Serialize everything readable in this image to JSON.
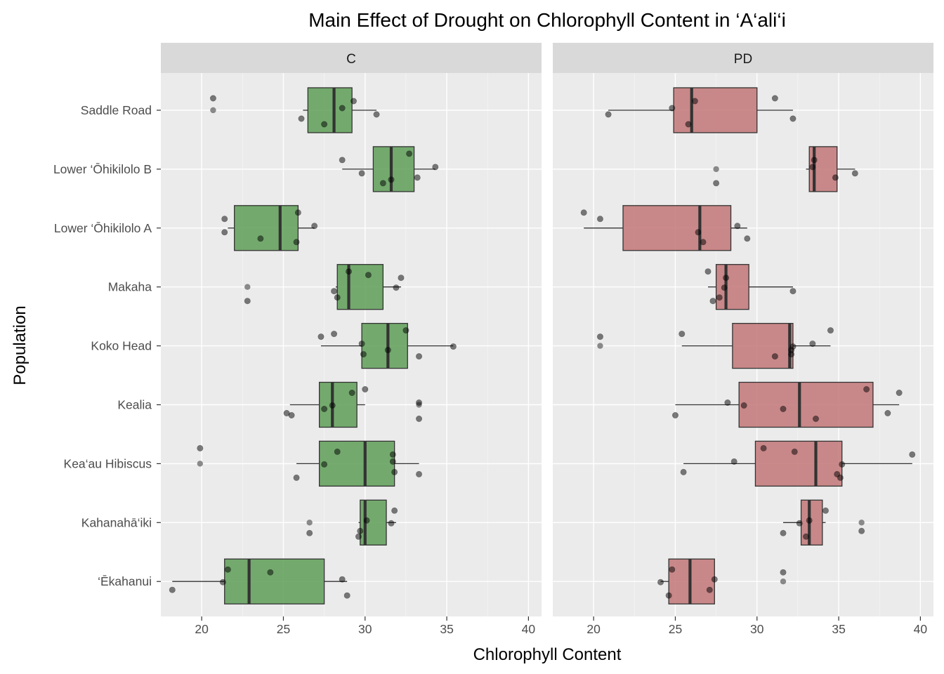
{
  "chart_data": {
    "type": "boxplot",
    "title": "Main Effect of Drought on Chlorophyll Content in ‘A‘ali‘i",
    "xlabel": "Chlorophyll Content",
    "ylabel": "Population",
    "xlim": [
      17.5,
      40.8
    ],
    "x_ticks": [
      "20",
      "25",
      "30",
      "35",
      "40"
    ],
    "grid": true,
    "categories": [
      "Saddle Road",
      "Lower ‘Ōhikilolo B",
      "Lower ‘Ōhikilolo A",
      "Makaha",
      "Koko Head",
      "Kealia",
      "Kea‘au Hibiscus",
      "Kahanahā‘iki",
      "‘Ēkahanui"
    ],
    "colors": {
      "C": "#5e9e57",
      "PD": "#c27577"
    },
    "panels": [
      {
        "name": "C",
        "boxes": [
          {
            "category": "Saddle Road",
            "whisker_low": 26.2,
            "q1": 26.5,
            "median": 28.1,
            "q3": 29.2,
            "whisker_high": 30.7,
            "outliers": [
              20.7
            ],
            "points": [
              20.7,
              26.1,
              28.6,
              27.5,
              29.3,
              30.7
            ]
          },
          {
            "category": "Lower ‘Ōhikilolo B",
            "whisker_low": 28.6,
            "q1": 30.5,
            "median": 31.6,
            "q3": 33.0,
            "whisker_high": 34.3,
            "outliers": [],
            "points": [
              33.2,
              34.3,
              31.1,
              28.6,
              29.8,
              32.7,
              31.6
            ]
          },
          {
            "category": "Lower ‘Ōhikilolo A",
            "whisker_low": 21.6,
            "q1": 22.0,
            "median": 24.8,
            "q3": 25.9,
            "whisker_high": 26.9,
            "outliers": [],
            "points": [
              26.9,
              25.8,
              21.4,
              21.4,
              25.9,
              23.6
            ]
          },
          {
            "category": "Makaha",
            "whisker_low": 28.2,
            "q1": 28.3,
            "median": 29.0,
            "q3": 31.1,
            "whisker_high": 32.2,
            "outliers": [
              22.8
            ],
            "points": [
              22.8,
              32.2,
              28.1,
              29.0,
              28.3,
              31.9,
              30.2
            ]
          },
          {
            "category": "Koko Head",
            "whisker_low": 27.3,
            "q1": 29.8,
            "median": 31.4,
            "q3": 32.6,
            "whisker_high": 35.4,
            "outliers": [],
            "points": [
              27.3,
              31.4,
              32.5,
              33.3,
              35.4,
              28.1,
              29.9,
              29.8
            ]
          },
          {
            "category": "Kealia",
            "whisker_low": 25.4,
            "q1": 27.2,
            "median": 28.0,
            "q3": 29.5,
            "whisker_high": 30.0,
            "outliers": [
              33.3
            ],
            "points": [
              27.5,
              30.0,
              25.5,
              28.0,
              29.2,
              25.2,
              33.3,
              33.3
            ]
          },
          {
            "category": "Kea‘au Hibiscus",
            "whisker_low": 25.8,
            "q1": 27.2,
            "median": 30.0,
            "q3": 31.8,
            "whisker_high": 33.3,
            "outliers": [
              19.9
            ],
            "points": [
              19.9,
              33.3,
              27.5,
              28.3,
              31.8,
              31.7,
              25.8,
              31.7
            ]
          },
          {
            "category": "Kahanahā‘iki",
            "whisker_low": 29.6,
            "q1": 29.7,
            "median": 30.0,
            "q3": 31.3,
            "whisker_high": 31.9,
            "outliers": [
              26.6
            ],
            "points": [
              26.6,
              31.6,
              31.8,
              29.7,
              30.1,
              29.6
            ]
          },
          {
            "category": "‘Ēkahanui",
            "whisker_low": 18.2,
            "q1": 21.4,
            "median": 22.9,
            "q3": 27.5,
            "whisker_high": 28.9,
            "outliers": [],
            "points": [
              21.3,
              21.6,
              18.2,
              28.6,
              28.9,
              24.2
            ]
          }
        ]
      },
      {
        "name": "PD",
        "boxes": [
          {
            "category": "Saddle Road",
            "whisker_low": 20.9,
            "q1": 24.9,
            "median": 26.0,
            "q3": 30.0,
            "whisker_high": 32.2,
            "outliers": [],
            "points": [
              31.1,
              32.2,
              24.8,
              25.8,
              26.2,
              20.9
            ]
          },
          {
            "category": "Lower ‘Ōhikilolo B",
            "whisker_low": 33.0,
            "q1": 33.2,
            "median": 33.5,
            "q3": 34.9,
            "whisker_high": 36.0,
            "outliers": [
              27.5
            ],
            "points": [
              34.8,
              33.4,
              27.5,
              33.5,
              36.0
            ]
          },
          {
            "category": "Lower ‘Ōhikilolo A",
            "whisker_low": 19.4,
            "q1": 21.8,
            "median": 26.5,
            "q3": 28.4,
            "whisker_high": 29.4,
            "outliers": [],
            "points": [
              28.8,
              26.7,
              20.4,
              26.4,
              19.4,
              29.4
            ]
          },
          {
            "category": "Makaha",
            "whisker_low": 27.0,
            "q1": 27.5,
            "median": 28.1,
            "q3": 29.5,
            "whisker_high": 32.2,
            "outliers": [],
            "points": [
              27.3,
              28.1,
              32.2,
              27.0,
              27.7,
              28.0
            ]
          },
          {
            "category": "Koko Head",
            "whisker_low": 25.4,
            "q1": 28.5,
            "median": 32.0,
            "q3": 32.2,
            "whisker_high": 34.5,
            "outliers": [
              20.4
            ],
            "points": [
              20.4,
              32.1,
              34.5,
              31.1,
              32.2,
              25.4,
              32.1,
              33.4
            ]
          },
          {
            "category": "Kealia",
            "whisker_low": 25.0,
            "q1": 28.9,
            "median": 32.6,
            "q3": 37.1,
            "whisker_high": 38.7,
            "outliers": [],
            "points": [
              31.6,
              36.7,
              25.0,
              29.2,
              38.7,
              38.0,
              28.2,
              33.6
            ]
          },
          {
            "category": "Kea‘au Hibiscus",
            "whisker_low": 25.5,
            "q1": 29.9,
            "median": 33.6,
            "q3": 35.2,
            "whisker_high": 39.5,
            "outliers": [],
            "points": [
              30.4,
              34.9,
              35.2,
              32.3,
              25.5,
              28.6,
              35.1,
              39.5
            ]
          },
          {
            "category": "Kahanahā‘iki",
            "whisker_low": 31.6,
            "q1": 32.7,
            "median": 33.2,
            "q3": 34.0,
            "whisker_high": 34.2,
            "outliers": [
              36.4
            ],
            "points": [
              31.6,
              32.6,
              34.2,
              36.4,
              33.2,
              33.0
            ]
          },
          {
            "category": "‘Ēkahanui",
            "whisker_low": 24.1,
            "q1": 24.6,
            "median": 25.9,
            "q3": 27.4,
            "whisker_high": 27.4,
            "outliers": [
              31.6
            ],
            "points": [
              24.1,
              24.8,
              27.1,
              27.4,
              24.6,
              31.6
            ]
          }
        ]
      }
    ]
  }
}
